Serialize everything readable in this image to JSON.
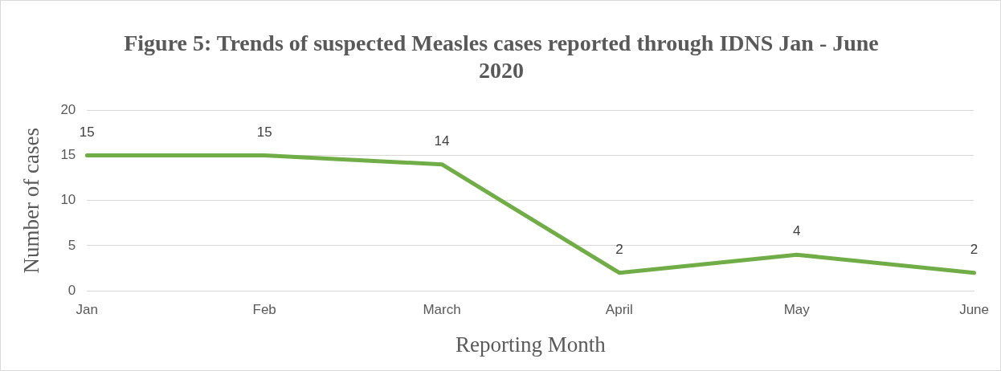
{
  "chart_data": {
    "type": "line",
    "title": "Figure 5: Trends of suspected Measles cases reported through IDNS Jan - June 2020",
    "xlabel": "Reporting Month",
    "ylabel": "Number of cases",
    "categories": [
      "Jan",
      "Feb",
      "March",
      "April",
      "May",
      "June"
    ],
    "series": [
      {
        "color": "#70ad47",
        "values": [
          15,
          15,
          14,
          2,
          4,
          2
        ]
      }
    ],
    "ylim": [
      0,
      20
    ],
    "yticks": [
      0,
      5,
      10,
      15,
      20
    ],
    "grid": "y",
    "legend": false,
    "data_labels": true,
    "marker": "none",
    "line_style": "solid"
  }
}
